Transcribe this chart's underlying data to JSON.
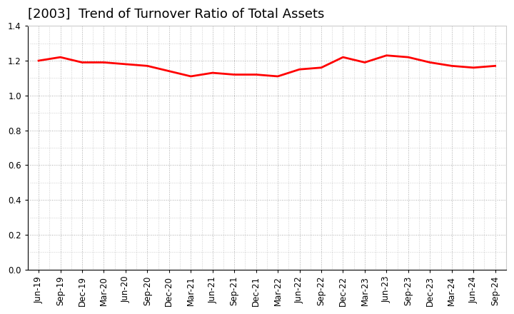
{
  "title": "[2003]  Trend of Turnover Ratio of Total Assets",
  "labels": [
    "Jun-19",
    "Sep-19",
    "Dec-19",
    "Mar-20",
    "Jun-20",
    "Sep-20",
    "Dec-20",
    "Mar-21",
    "Jun-21",
    "Sep-21",
    "Dec-21",
    "Mar-22",
    "Jun-22",
    "Sep-22",
    "Dec-22",
    "Mar-23",
    "Jun-23",
    "Sep-23",
    "Dec-23",
    "Mar-24",
    "Jun-24",
    "Sep-24"
  ],
  "values": [
    1.2,
    1.22,
    1.19,
    1.19,
    1.18,
    1.17,
    1.14,
    1.11,
    1.13,
    1.12,
    1.12,
    1.11,
    1.15,
    1.16,
    1.22,
    1.19,
    1.23,
    1.22,
    1.19,
    1.17,
    1.16,
    1.17
  ],
  "line_color": "#ff0000",
  "line_width": 2.0,
  "background_color": "#ffffff",
  "plot_bg_color": "#ffffff",
  "grid_color": "#aaaaaa",
  "ylim": [
    0.0,
    1.4
  ],
  "yticks": [
    0.0,
    0.2,
    0.4,
    0.6,
    0.8,
    1.0,
    1.2,
    1.4
  ],
  "title_fontsize": 13,
  "tick_fontsize": 8.5
}
